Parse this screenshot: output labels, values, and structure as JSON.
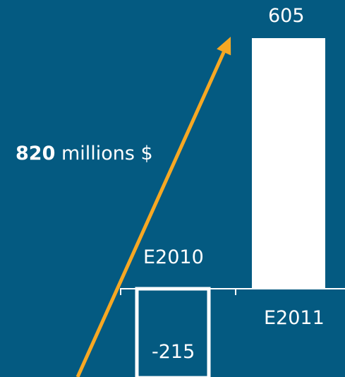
{
  "chart_data": {
    "type": "bar",
    "categories": [
      "E2010",
      "E2011"
    ],
    "values": [
      -215,
      605
    ],
    "data_labels": [
      "-215",
      "605"
    ],
    "annotation": {
      "value": "820",
      "unit": "millions $"
    },
    "colors": {
      "background": "#045a81",
      "bar_fill": "#ffffff",
      "arrow": "#f7a823",
      "axis": "#ffffff"
    }
  }
}
